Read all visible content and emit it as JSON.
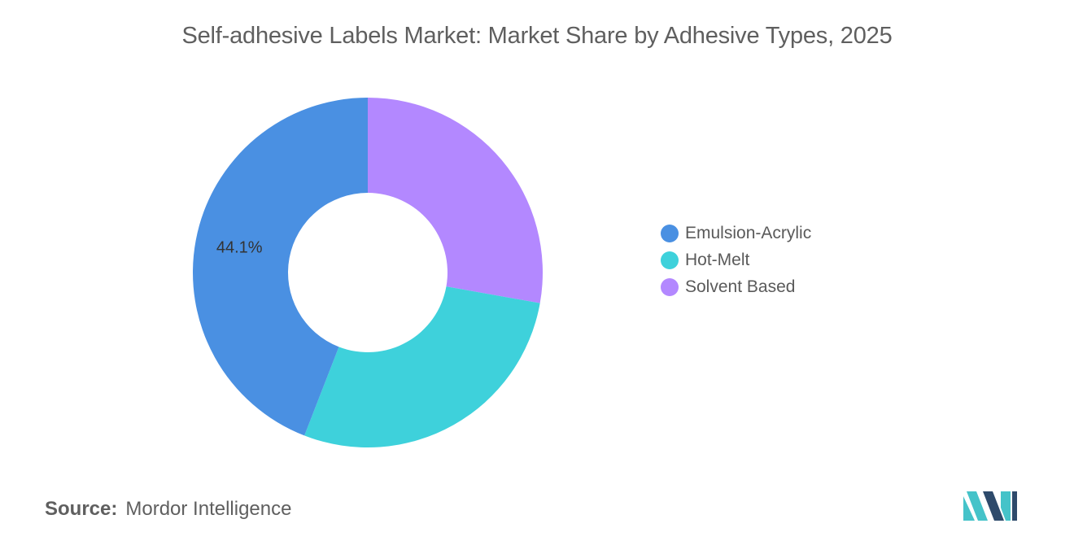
{
  "chart_data": {
    "type": "pie",
    "variant": "donut",
    "title": "Self-adhesive Labels Market: Market Share by Adhesive Types, 2025",
    "slices": [
      {
        "name": "Solvent Based",
        "value": 27.8,
        "color": "#b388ff"
      },
      {
        "name": "Hot-Melt",
        "value": 28.1,
        "color": "#3ed1db"
      },
      {
        "name": "Emulsion-Acrylic",
        "value": 44.1,
        "color": "#4a90e2"
      }
    ],
    "data_labels": [
      {
        "series": "Emulsion-Acrylic",
        "text": "44.1%"
      }
    ],
    "legend": {
      "placement": "right",
      "entries": [
        {
          "name": "Emulsion-Acrylic",
          "color": "#4a90e2"
        },
        {
          "name": "Hot-Melt",
          "color": "#3ed1db"
        },
        {
          "name": "Solvent Based",
          "color": "#b388ff"
        }
      ]
    }
  },
  "source": {
    "label": "Source:",
    "text": "Mordor Intelligence"
  },
  "logo": {
    "icon": "mordor-intelligence-logo-icon",
    "colors": [
      "#2e4a6b",
      "#45c3c9"
    ]
  }
}
